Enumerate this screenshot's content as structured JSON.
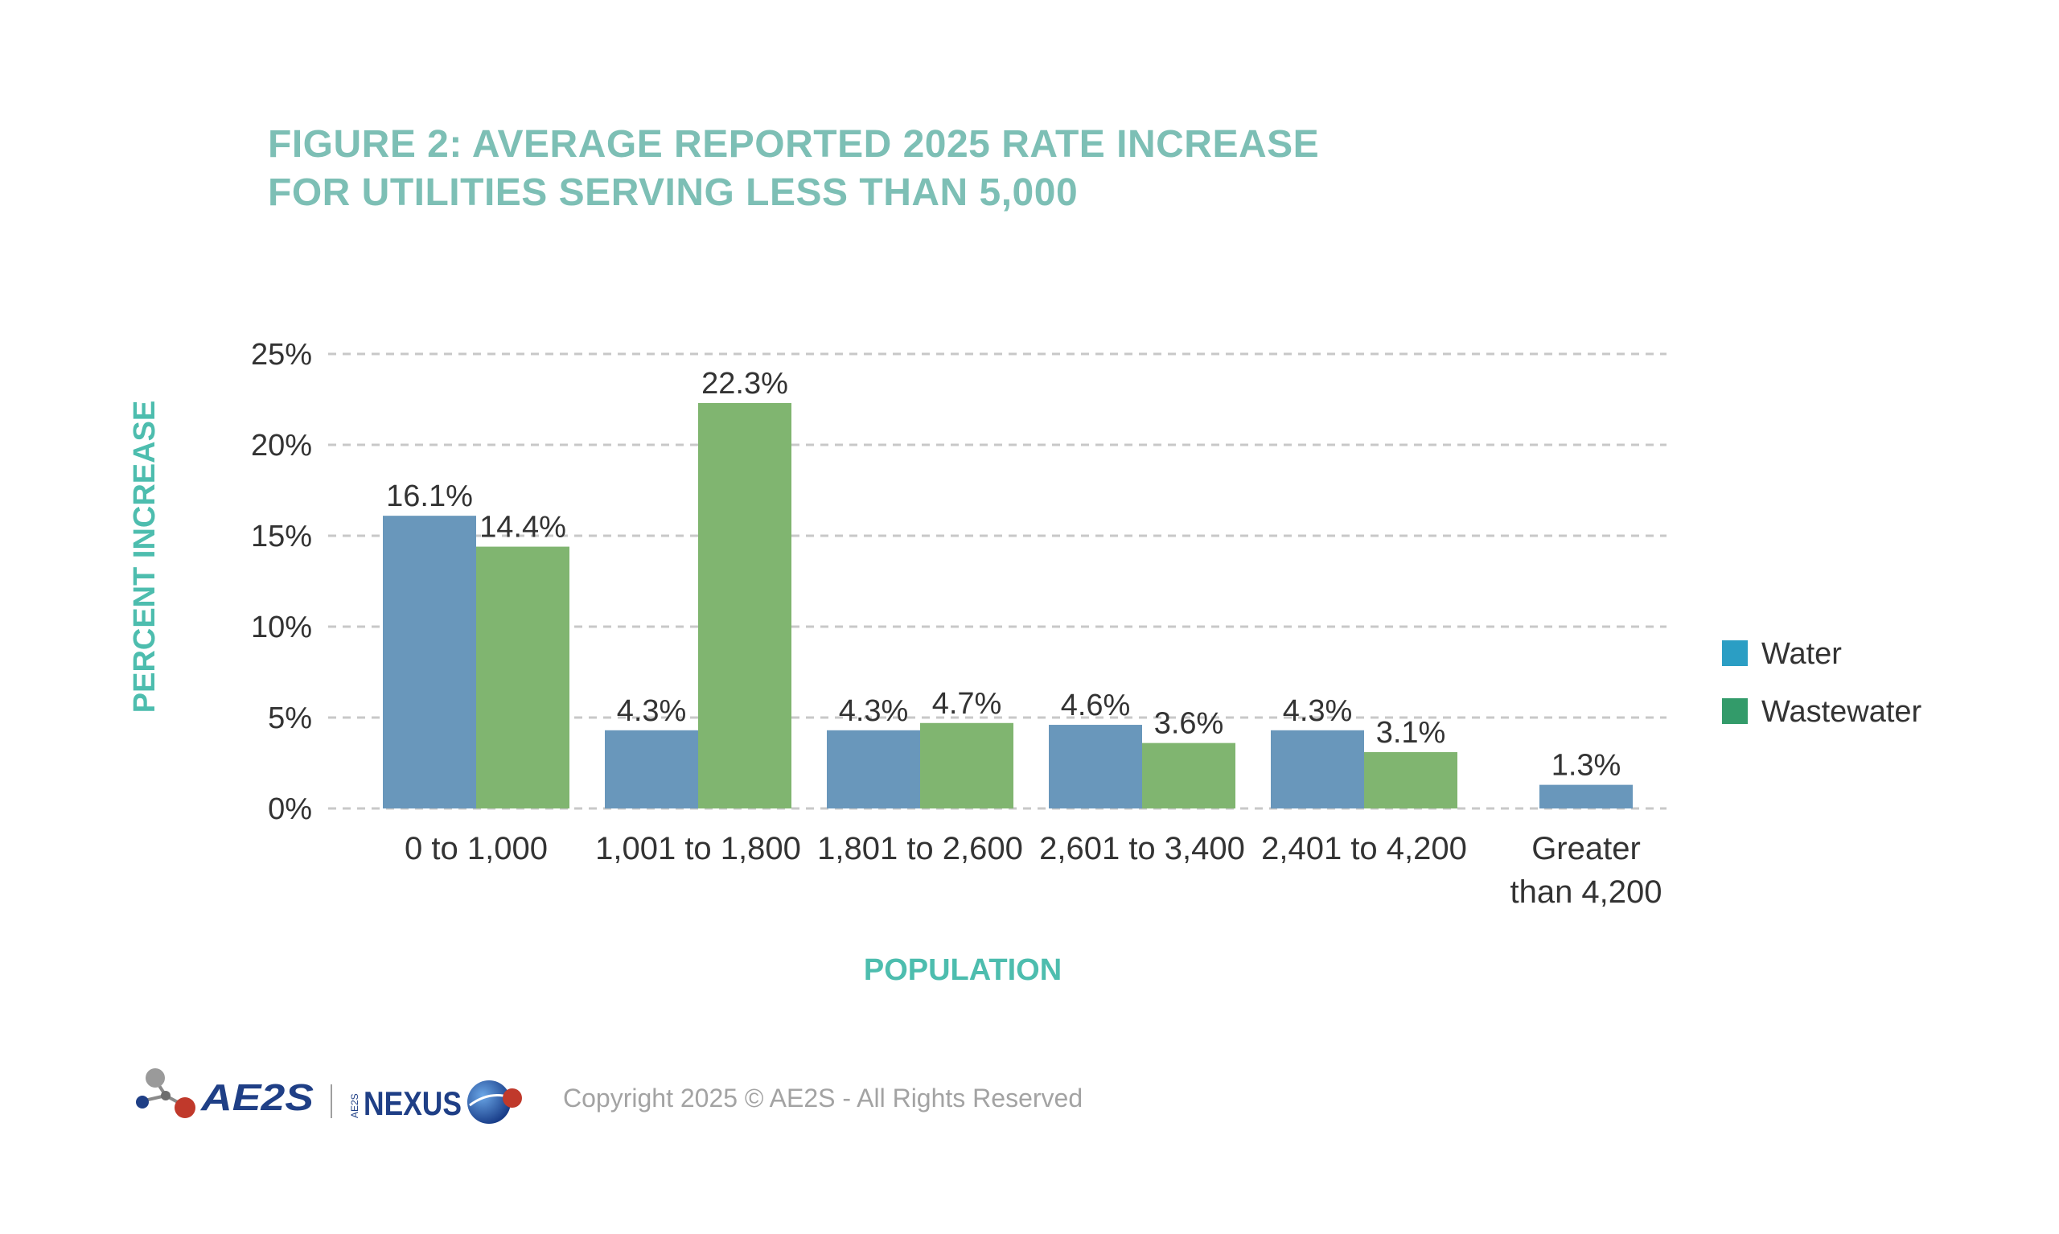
{
  "title": {
    "line1": "FIGURE 2: AVERAGE REPORTED 2025 RATE INCREASE",
    "line2": "FOR UTILITIES SERVING LESS THAN 5,000"
  },
  "colors": {
    "title": "#7dbfb5",
    "axis_title": "#4dbdae",
    "water_bar": "#6997bb",
    "wastewater_bar": "#80b570",
    "legend_water": "#2b9ec4",
    "legend_wastewater": "#339b6a",
    "grid": "#c8c8c8"
  },
  "chart_data": {
    "type": "bar",
    "ylabel": "PERCENT INCREASE",
    "xlabel": "POPULATION",
    "ylim": [
      0,
      25
    ],
    "yticks": [
      "0%",
      "5%",
      "10%",
      "15%",
      "20%",
      "25%"
    ],
    "grid": true,
    "legend_position": "right",
    "categories": [
      [
        "0 to 1,000"
      ],
      [
        "1,001 to 1,800"
      ],
      [
        "1,801 to 2,600"
      ],
      [
        "2,601 to 3,400"
      ],
      [
        "2,401 to 4,200"
      ],
      [
        "Greater",
        "than 4,200"
      ]
    ],
    "series": [
      {
        "name": "Water",
        "values": [
          16.1,
          4.3,
          4.3,
          4.6,
          4.3,
          1.3
        ],
        "labels": [
          "16.1%",
          "4.3%",
          "4.3%",
          "4.6%",
          "4.3%",
          "1.3%"
        ]
      },
      {
        "name": "Wastewater",
        "values": [
          14.4,
          22.3,
          4.7,
          3.6,
          3.1,
          null
        ],
        "labels": [
          "14.4%",
          "22.3%",
          "4.7%",
          "3.6%",
          "3.1%",
          ""
        ]
      }
    ]
  },
  "logos": {
    "ae2s": "AE2S",
    "nexus": "NEXUS",
    "nexus_prefix": "AE2S"
  },
  "footer": {
    "copyright": "Copyright 2025 © AE2S - All Rights Reserved"
  }
}
